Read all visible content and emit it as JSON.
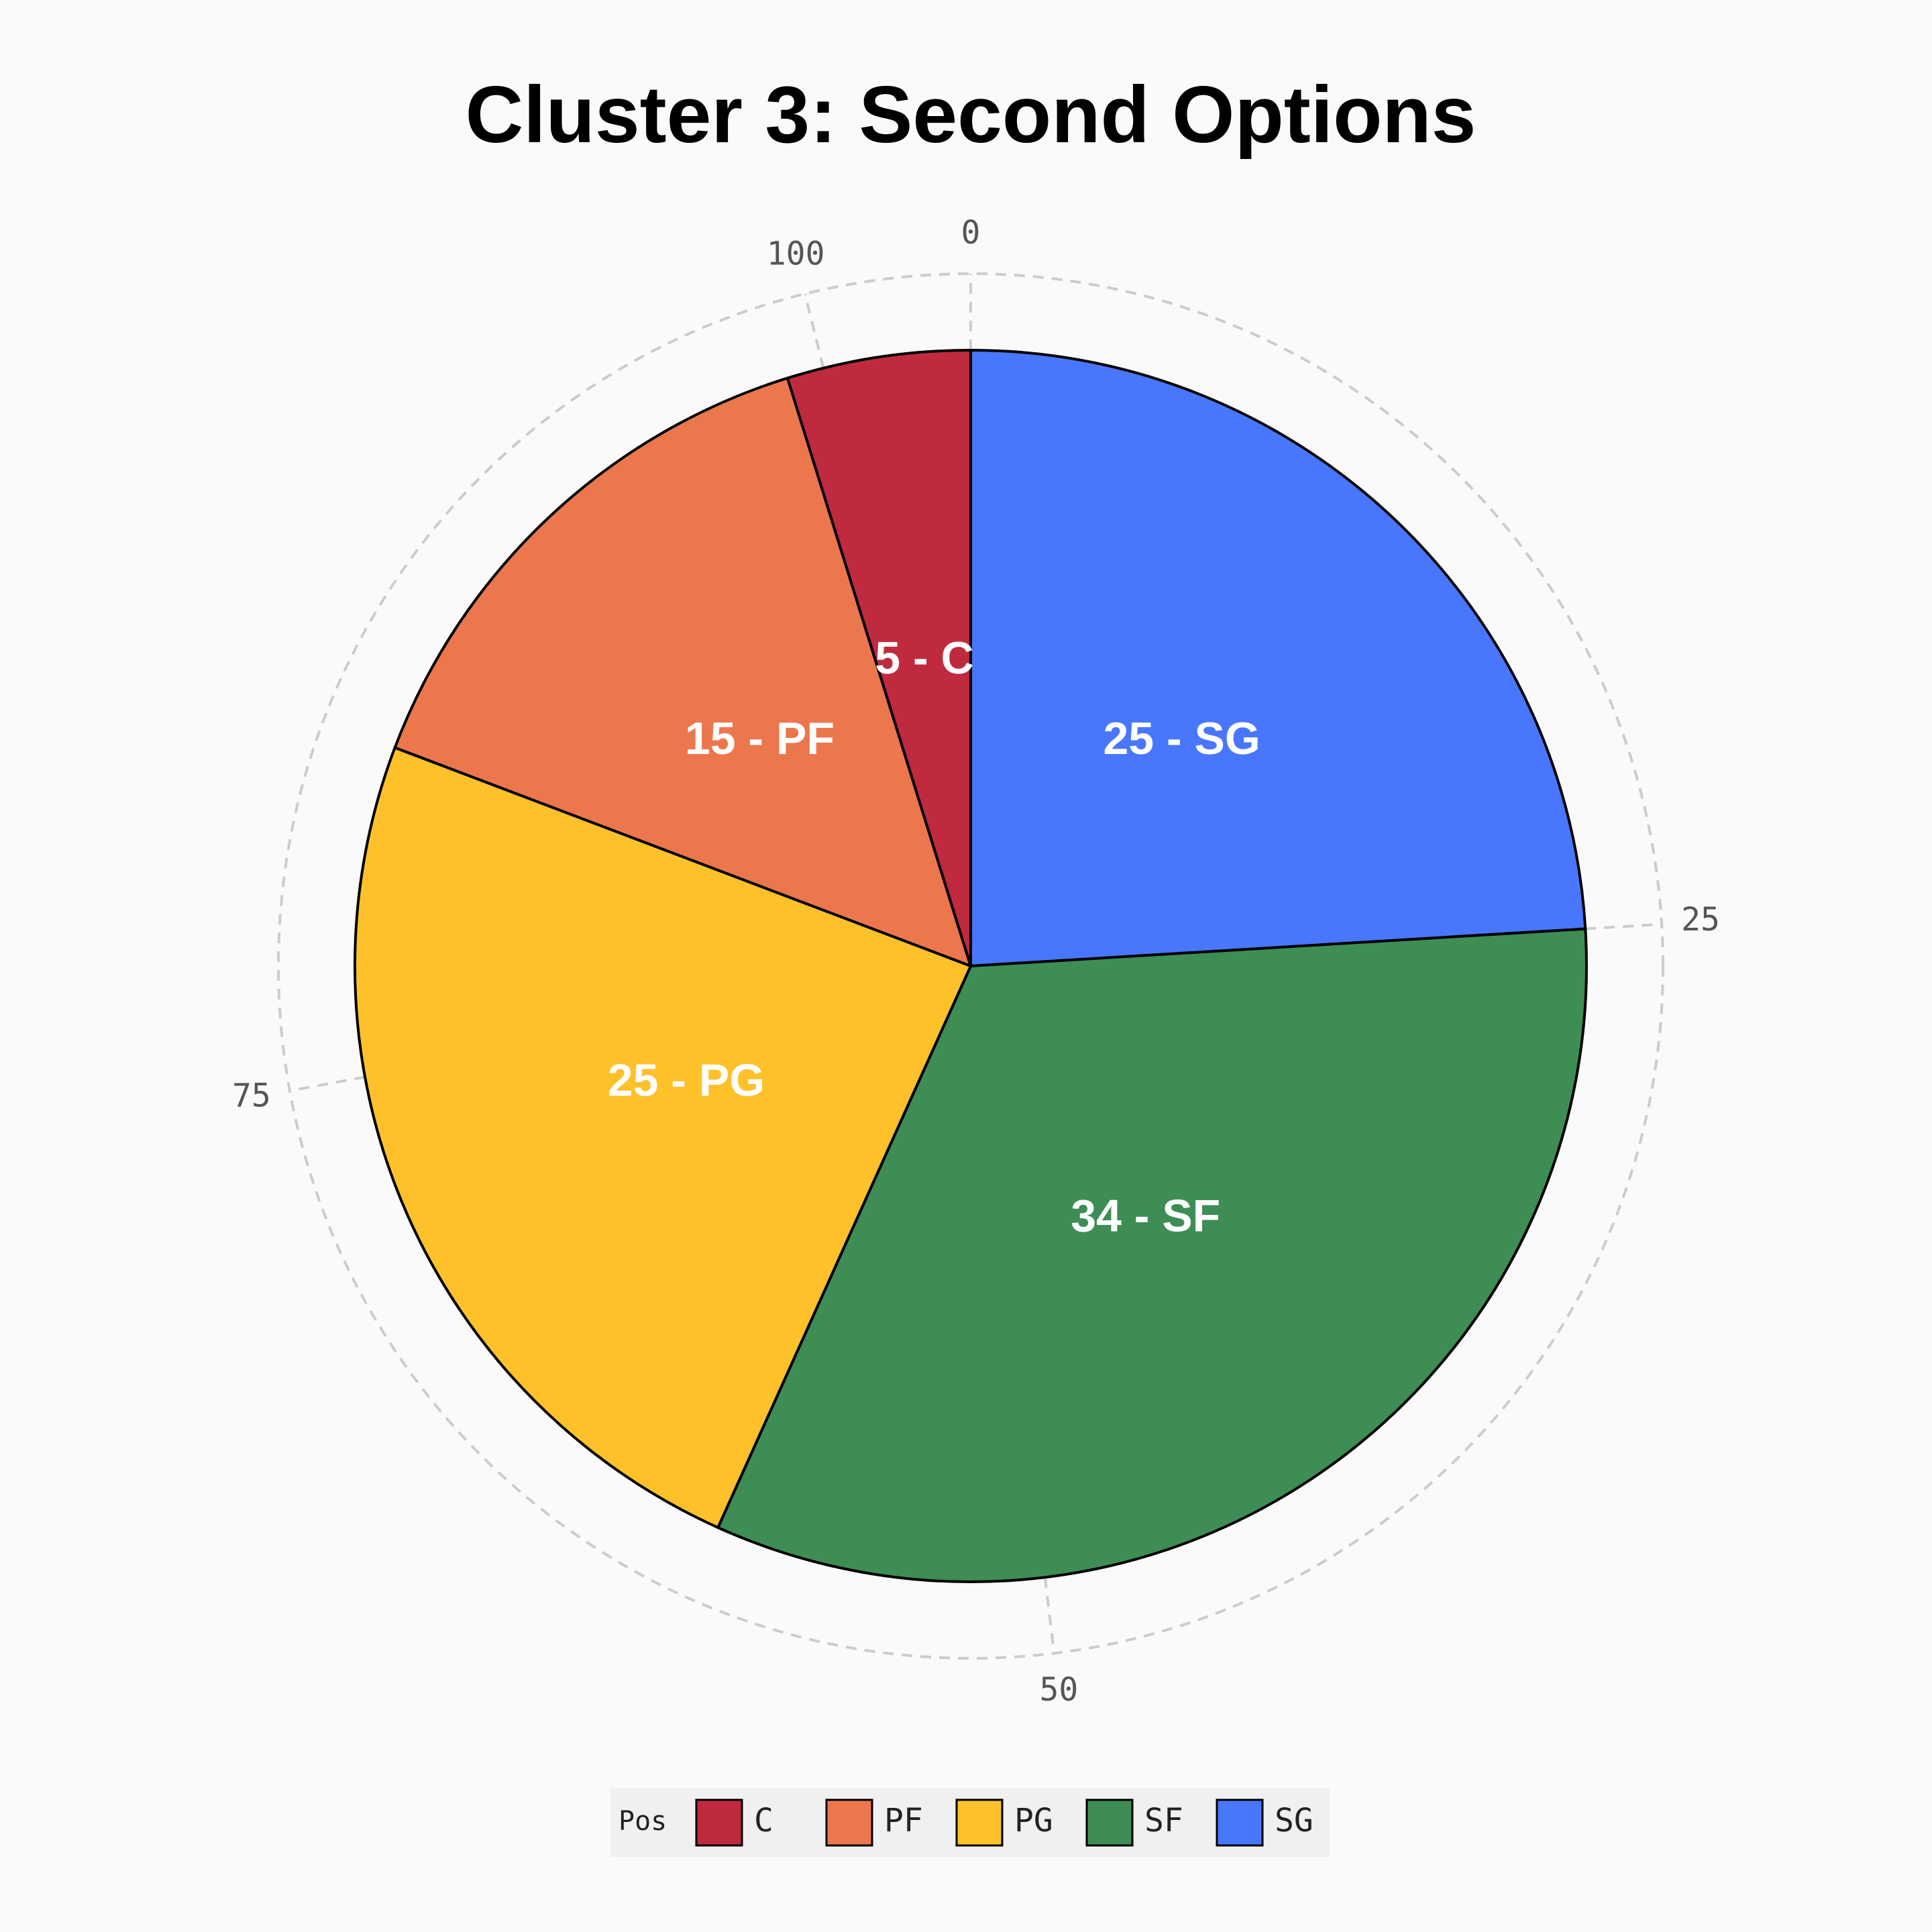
{
  "chart_data": {
    "type": "pie",
    "title": "Cluster 3: Second Options",
    "categories": [
      "SG",
      "SF",
      "PG",
      "PF",
      "C"
    ],
    "values": [
      25,
      34,
      25,
      15,
      5
    ],
    "colors": {
      "C": "#bf2a3e",
      "PF": "#ec774d",
      "PG": "#fec12a",
      "SF": "#3d8d55",
      "SG": "#4877fe"
    },
    "slice_labels": [
      "25 - SG",
      "34 - SF",
      "25 - PG",
      "15 - PF",
      "5 - C"
    ],
    "angular_axis": {
      "ticks": [
        0,
        25,
        50,
        75,
        100
      ],
      "tick_labels": [
        "0",
        "25",
        "50",
        "75",
        "100"
      ],
      "range": [
        0,
        104
      ],
      "grid": true,
      "grid_style": "dashed"
    },
    "legend": {
      "title": "Pos",
      "placement": "bottom",
      "entries": [
        "C",
        "PF",
        "PG",
        "SF",
        "SG"
      ]
    },
    "background": "#fafafa",
    "outline_color": "#000000"
  }
}
